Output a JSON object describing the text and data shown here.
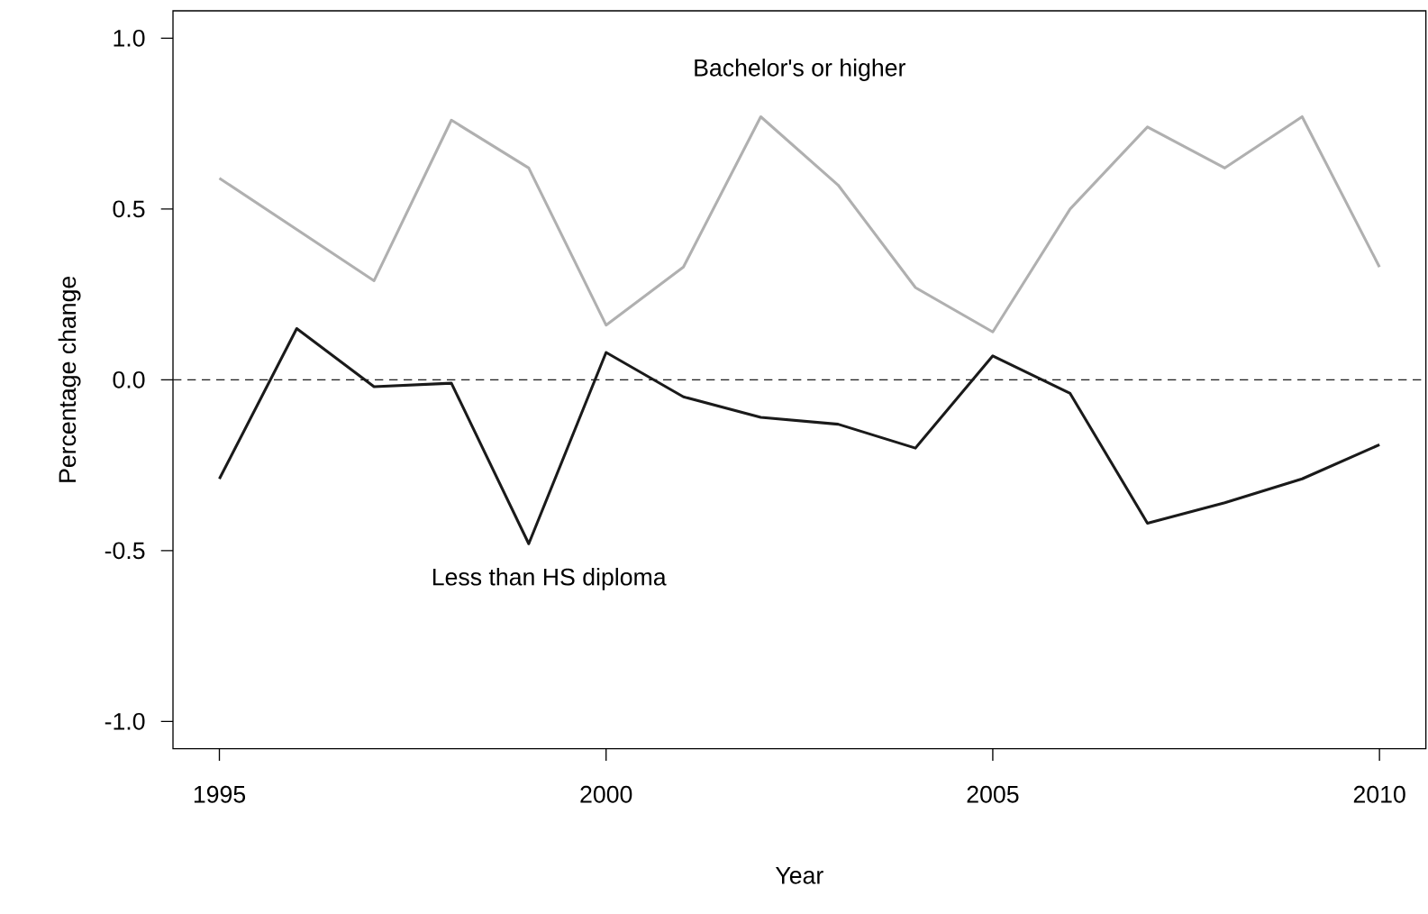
{
  "chart_data": {
    "type": "line",
    "xlabel": "Year",
    "ylabel": "Percentage change",
    "x": [
      1995,
      1996,
      1997,
      1998,
      1999,
      2000,
      2001,
      2002,
      2003,
      2004,
      2005,
      2006,
      2007,
      2008,
      2009,
      2010
    ],
    "series": [
      {
        "name": "Bachelor's or higher",
        "color": "#b0b0b0",
        "values": [
          0.59,
          0.44,
          0.29,
          0.76,
          0.62,
          0.16,
          0.33,
          0.77,
          0.57,
          0.27,
          0.14,
          0.5,
          0.74,
          0.62,
          0.77,
          0.33
        ]
      },
      {
        "name": "Less than HS diploma",
        "color": "#1a1a1a",
        "values": [
          -0.29,
          0.15,
          -0.02,
          -0.01,
          -0.48,
          0.08,
          -0.05,
          -0.11,
          -0.13,
          -0.2,
          0.07,
          -0.04,
          -0.42,
          -0.36,
          -0.29,
          -0.19
        ]
      }
    ],
    "xlim": [
      1994.4,
      2010.6
    ],
    "ylim": [
      -1.08,
      1.08
    ],
    "xticks": [
      1995,
      2000,
      2005,
      2010
    ],
    "yticks": [
      {
        "value": -1.0,
        "label": "-1.0"
      },
      {
        "value": -0.5,
        "label": "-0.5"
      },
      {
        "value": 0.0,
        "label": "0.0"
      },
      {
        "value": 0.5,
        "label": "0.5"
      },
      {
        "value": 1.0,
        "label": "1.0"
      }
    ],
    "ref_lines": [
      {
        "axis": "y",
        "value": 0,
        "color": "#1a1a1a",
        "line_style": "dashed"
      }
    ]
  }
}
